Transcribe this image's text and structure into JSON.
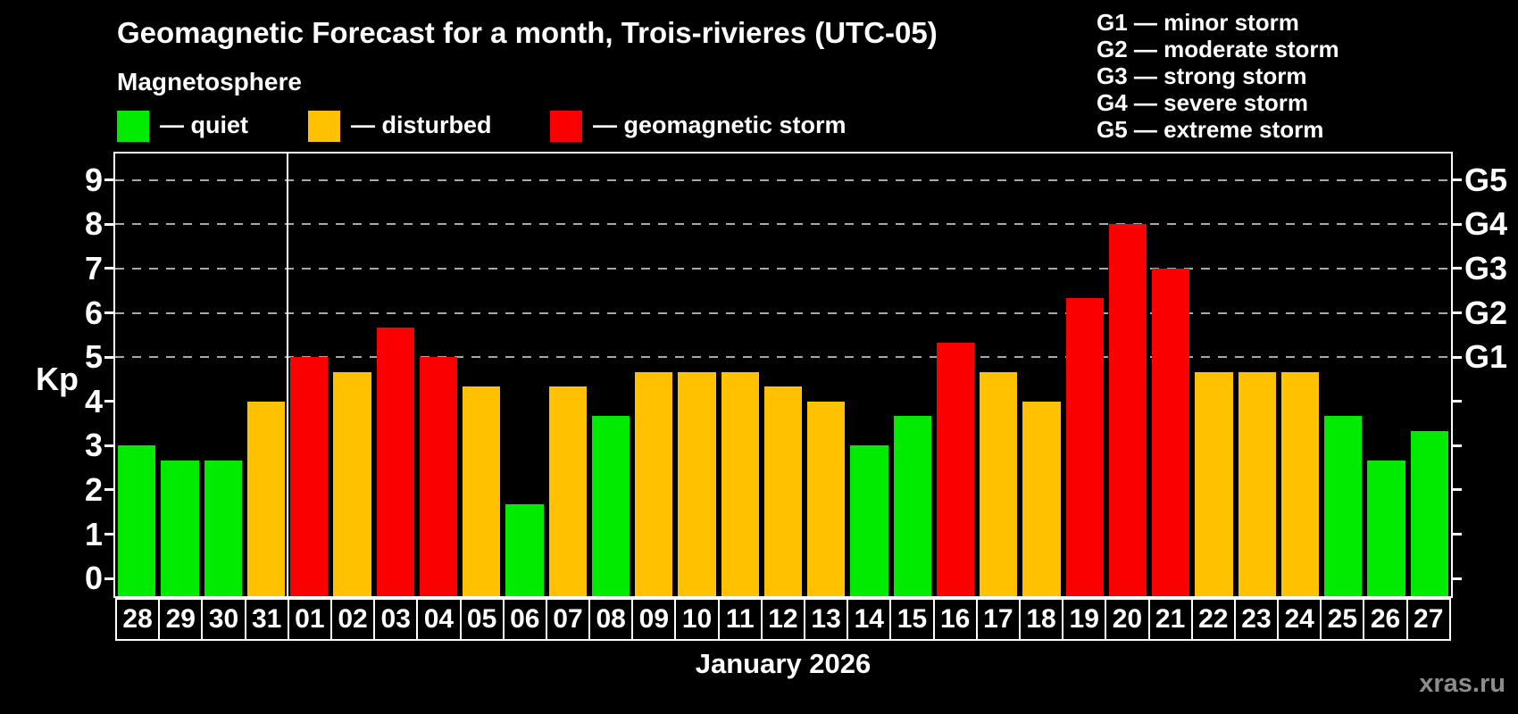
{
  "title": "Geomagnetic Forecast for a month, Trois-rivieres (UTC-05)",
  "subtitle": "Magnetosphere",
  "legend": {
    "quiet": {
      "label": "— quiet",
      "color": "#00EB00"
    },
    "disturbed": {
      "label": "— disturbed",
      "color": "#FFC100"
    },
    "storm": {
      "label": "— geomagnetic storm",
      "color": "#FB0000"
    }
  },
  "storm_scale_legend": [
    "G1 — minor storm",
    "G2 — moderate storm",
    "G3 — strong storm",
    "G4 — severe storm",
    "G5 — extreme storm"
  ],
  "y_axis": {
    "label": "Kp",
    "ticks": [
      0,
      1,
      2,
      3,
      4,
      5,
      6,
      7,
      8,
      9
    ]
  },
  "right_axis": {
    "labels": [
      {
        "kp": 5,
        "label": "G1"
      },
      {
        "kp": 6,
        "label": "G2"
      },
      {
        "kp": 7,
        "label": "G3"
      },
      {
        "kp": 8,
        "label": "G4"
      },
      {
        "kp": 9,
        "label": "G5"
      }
    ]
  },
  "x_axis": {
    "month_label": "January 2026"
  },
  "watermark": "xras.ru",
  "chart_data": {
    "type": "bar",
    "title": "Geomagnetic Forecast for a month, Trois-rivieres (UTC-05)",
    "xlabel": "January 2026",
    "ylabel": "Kp",
    "ylim": [
      0,
      9
    ],
    "gridlines_at": [
      5,
      6,
      7,
      8,
      9
    ],
    "legend_position": "top-left",
    "month_boundary_after_index": 3,
    "bars": [
      {
        "day": "28",
        "kp": 3.0,
        "condition": "quiet"
      },
      {
        "day": "29",
        "kp": 2.67,
        "condition": "quiet"
      },
      {
        "day": "30",
        "kp": 2.67,
        "condition": "quiet"
      },
      {
        "day": "31",
        "kp": 4.0,
        "condition": "disturbed"
      },
      {
        "day": "01",
        "kp": 5.0,
        "condition": "storm"
      },
      {
        "day": "02",
        "kp": 4.67,
        "condition": "disturbed"
      },
      {
        "day": "03",
        "kp": 5.67,
        "condition": "storm"
      },
      {
        "day": "04",
        "kp": 5.0,
        "condition": "storm"
      },
      {
        "day": "05",
        "kp": 4.33,
        "condition": "disturbed"
      },
      {
        "day": "06",
        "kp": 1.67,
        "condition": "quiet"
      },
      {
        "day": "07",
        "kp": 4.33,
        "condition": "disturbed"
      },
      {
        "day": "08",
        "kp": 3.67,
        "condition": "quiet"
      },
      {
        "day": "09",
        "kp": 4.67,
        "condition": "disturbed"
      },
      {
        "day": "10",
        "kp": 4.67,
        "condition": "disturbed"
      },
      {
        "day": "11",
        "kp": 4.67,
        "condition": "disturbed"
      },
      {
        "day": "12",
        "kp": 4.33,
        "condition": "disturbed"
      },
      {
        "day": "13",
        "kp": 4.0,
        "condition": "disturbed"
      },
      {
        "day": "14",
        "kp": 3.0,
        "condition": "quiet"
      },
      {
        "day": "15",
        "kp": 3.67,
        "condition": "quiet"
      },
      {
        "day": "16",
        "kp": 5.33,
        "condition": "storm"
      },
      {
        "day": "17",
        "kp": 4.67,
        "condition": "disturbed"
      },
      {
        "day": "18",
        "kp": 4.0,
        "condition": "disturbed"
      },
      {
        "day": "19",
        "kp": 6.33,
        "condition": "storm"
      },
      {
        "day": "20",
        "kp": 8.0,
        "condition": "storm"
      },
      {
        "day": "21",
        "kp": 7.0,
        "condition": "storm"
      },
      {
        "day": "22",
        "kp": 4.67,
        "condition": "disturbed"
      },
      {
        "day": "23",
        "kp": 4.67,
        "condition": "disturbed"
      },
      {
        "day": "24",
        "kp": 4.67,
        "condition": "disturbed"
      },
      {
        "day": "25",
        "kp": 3.67,
        "condition": "quiet"
      },
      {
        "day": "26",
        "kp": 2.67,
        "condition": "quiet"
      },
      {
        "day": "27",
        "kp": 3.33,
        "condition": "quiet"
      }
    ]
  }
}
